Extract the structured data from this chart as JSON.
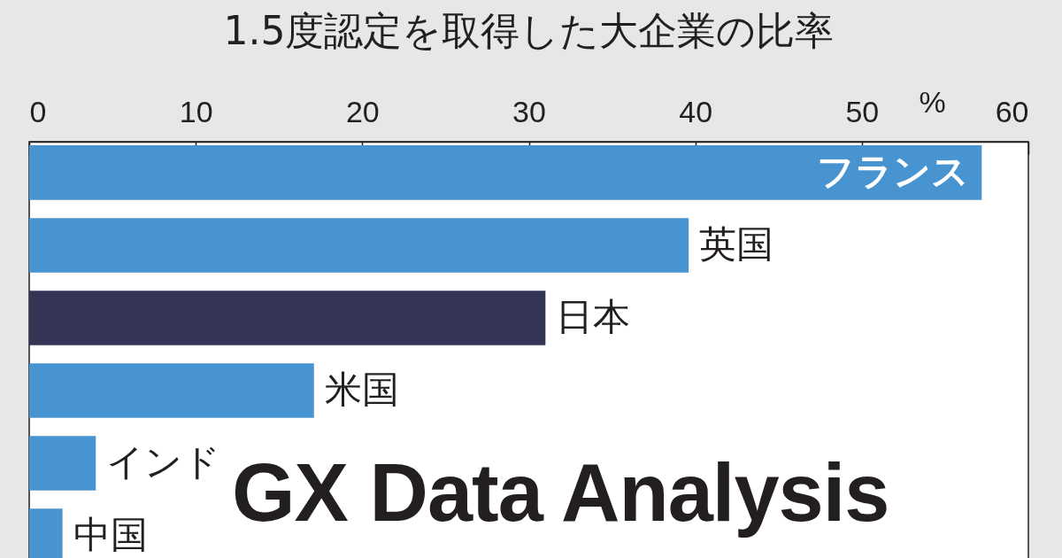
{
  "chart_data": {
    "type": "bar",
    "orientation": "horizontal",
    "title": "1.5度認定を取得した大企業の比率",
    "xlabel": "%",
    "categories": [
      "フランス",
      "英国",
      "日本",
      "米国",
      "インド",
      "中国"
    ],
    "values": [
      57.2,
      39.6,
      31.0,
      17.1,
      4.0,
      2.0
    ],
    "colors": [
      "#4894d0",
      "#4894d0",
      "#343556",
      "#4894d0",
      "#4894d0",
      "#4894d0"
    ],
    "xlim": [
      0,
      60
    ],
    "xticks": [
      0,
      10,
      20,
      30,
      40,
      50,
      60
    ],
    "grid": false,
    "annotations": [
      "GX Data Analysis"
    ]
  }
}
